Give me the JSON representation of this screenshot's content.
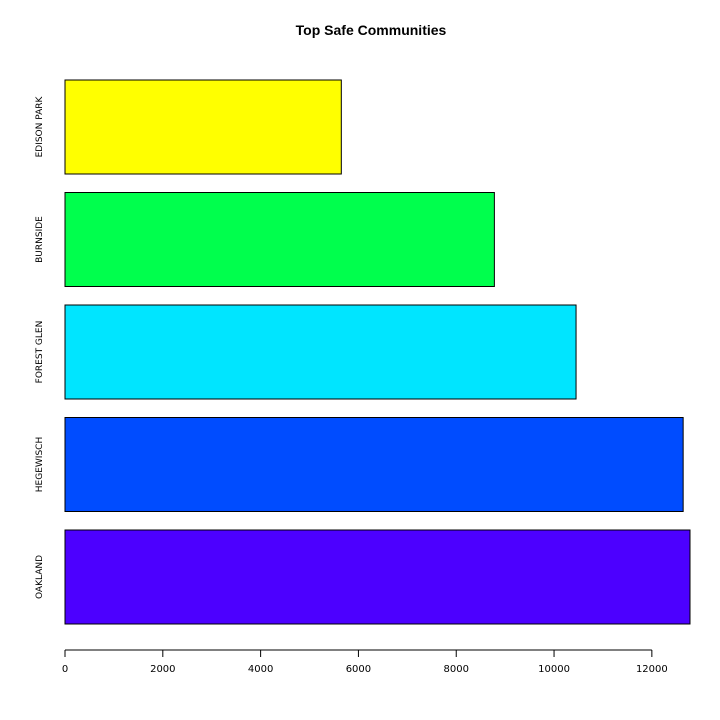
{
  "chart_data": {
    "type": "bar",
    "orientation": "horizontal",
    "title": "Top Safe Communities",
    "xlabel": "",
    "ylabel": "",
    "categories": [
      "OAKLAND",
      "HEGEWISCH",
      "FOREST GLEN",
      "BURNSIDE",
      "EDISON PARK"
    ],
    "values": [
      12780,
      12640,
      10450,
      8780,
      5650
    ],
    "colors": [
      "#4c00ff",
      "#004cff",
      "#00e5ff",
      "#00ff4d",
      "#ffff00"
    ],
    "x_ticks": [
      0,
      2000,
      4000,
      6000,
      8000,
      10000,
      12000
    ],
    "x_tick_labels": [
      "0",
      "2000",
      "4000",
      "6000",
      "8000",
      "10000",
      "12000"
    ],
    "xlim": [
      0,
      12780
    ],
    "grid": false,
    "legend": "none"
  }
}
